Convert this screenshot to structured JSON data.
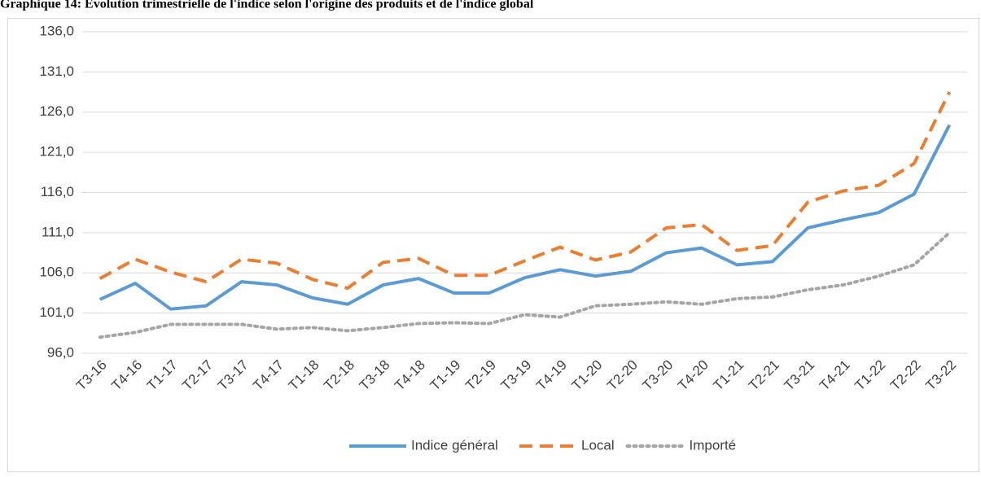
{
  "chart_data": {
    "type": "line",
    "title": "Graphique 14: Évolution trimestrielle de l'indice selon l'origine des produits et de l'indice global",
    "categories": [
      "T3-16",
      "T4-16",
      "T1-17",
      "T2-17",
      "T3-17",
      "T4-17",
      "T1-18",
      "T2-18",
      "T3-18",
      "T4-18",
      "T1-19",
      "T2-19",
      "T3-19",
      "T4-19",
      "T1-20",
      "T2-20",
      "T3-20",
      "T4-20",
      "T1-21",
      "T2-21",
      "T3-21",
      "T4-21",
      "T1-22",
      "T2-22",
      "T3-22"
    ],
    "series": [
      {
        "name": "Indice général",
        "color": "#5b9bd5",
        "dash": "solid",
        "values": [
          102.7,
          104.7,
          101.5,
          101.9,
          104.9,
          104.5,
          102.9,
          102.1,
          104.5,
          105.3,
          103.5,
          103.5,
          105.4,
          106.4,
          105.6,
          106.2,
          108.5,
          109.1,
          107.0,
          107.4,
          111.6,
          112.6,
          113.5,
          115.8,
          124.4
        ]
      },
      {
        "name": "Local",
        "color": "#ed7d31",
        "dash": "dashed",
        "values": [
          105.3,
          107.7,
          106.1,
          104.9,
          107.7,
          107.2,
          105.2,
          104.1,
          107.3,
          107.8,
          105.7,
          105.7,
          107.5,
          109.2,
          107.6,
          108.6,
          111.6,
          112.0,
          108.8,
          109.4,
          114.8,
          116.2,
          116.9,
          119.6,
          128.5
        ]
      },
      {
        "name": "Importé",
        "color": "#a5a5a5",
        "dash": "dotted",
        "values": [
          98.0,
          98.6,
          99.6,
          99.6,
          99.6,
          99.0,
          99.2,
          98.8,
          99.2,
          99.7,
          99.8,
          99.7,
          100.8,
          100.5,
          101.9,
          102.1,
          102.4,
          102.1,
          102.8,
          103.0,
          103.9,
          104.5,
          105.6,
          107.0,
          111.0
        ]
      }
    ],
    "ylim": [
      96,
      136
    ],
    "yticks": [
      {
        "value": 96,
        "label": "96,0"
      },
      {
        "value": 101,
        "label": "101,0"
      },
      {
        "value": 106,
        "label": "106,0"
      },
      {
        "value": 111,
        "label": "111,0"
      },
      {
        "value": 116,
        "label": "116,0"
      },
      {
        "value": 121,
        "label": "121,0"
      },
      {
        "value": 126,
        "label": "126,0"
      },
      {
        "value": 131,
        "label": "131,0"
      },
      {
        "value": 136,
        "label": "136,0"
      }
    ],
    "grid": true,
    "legend": "bottom"
  }
}
